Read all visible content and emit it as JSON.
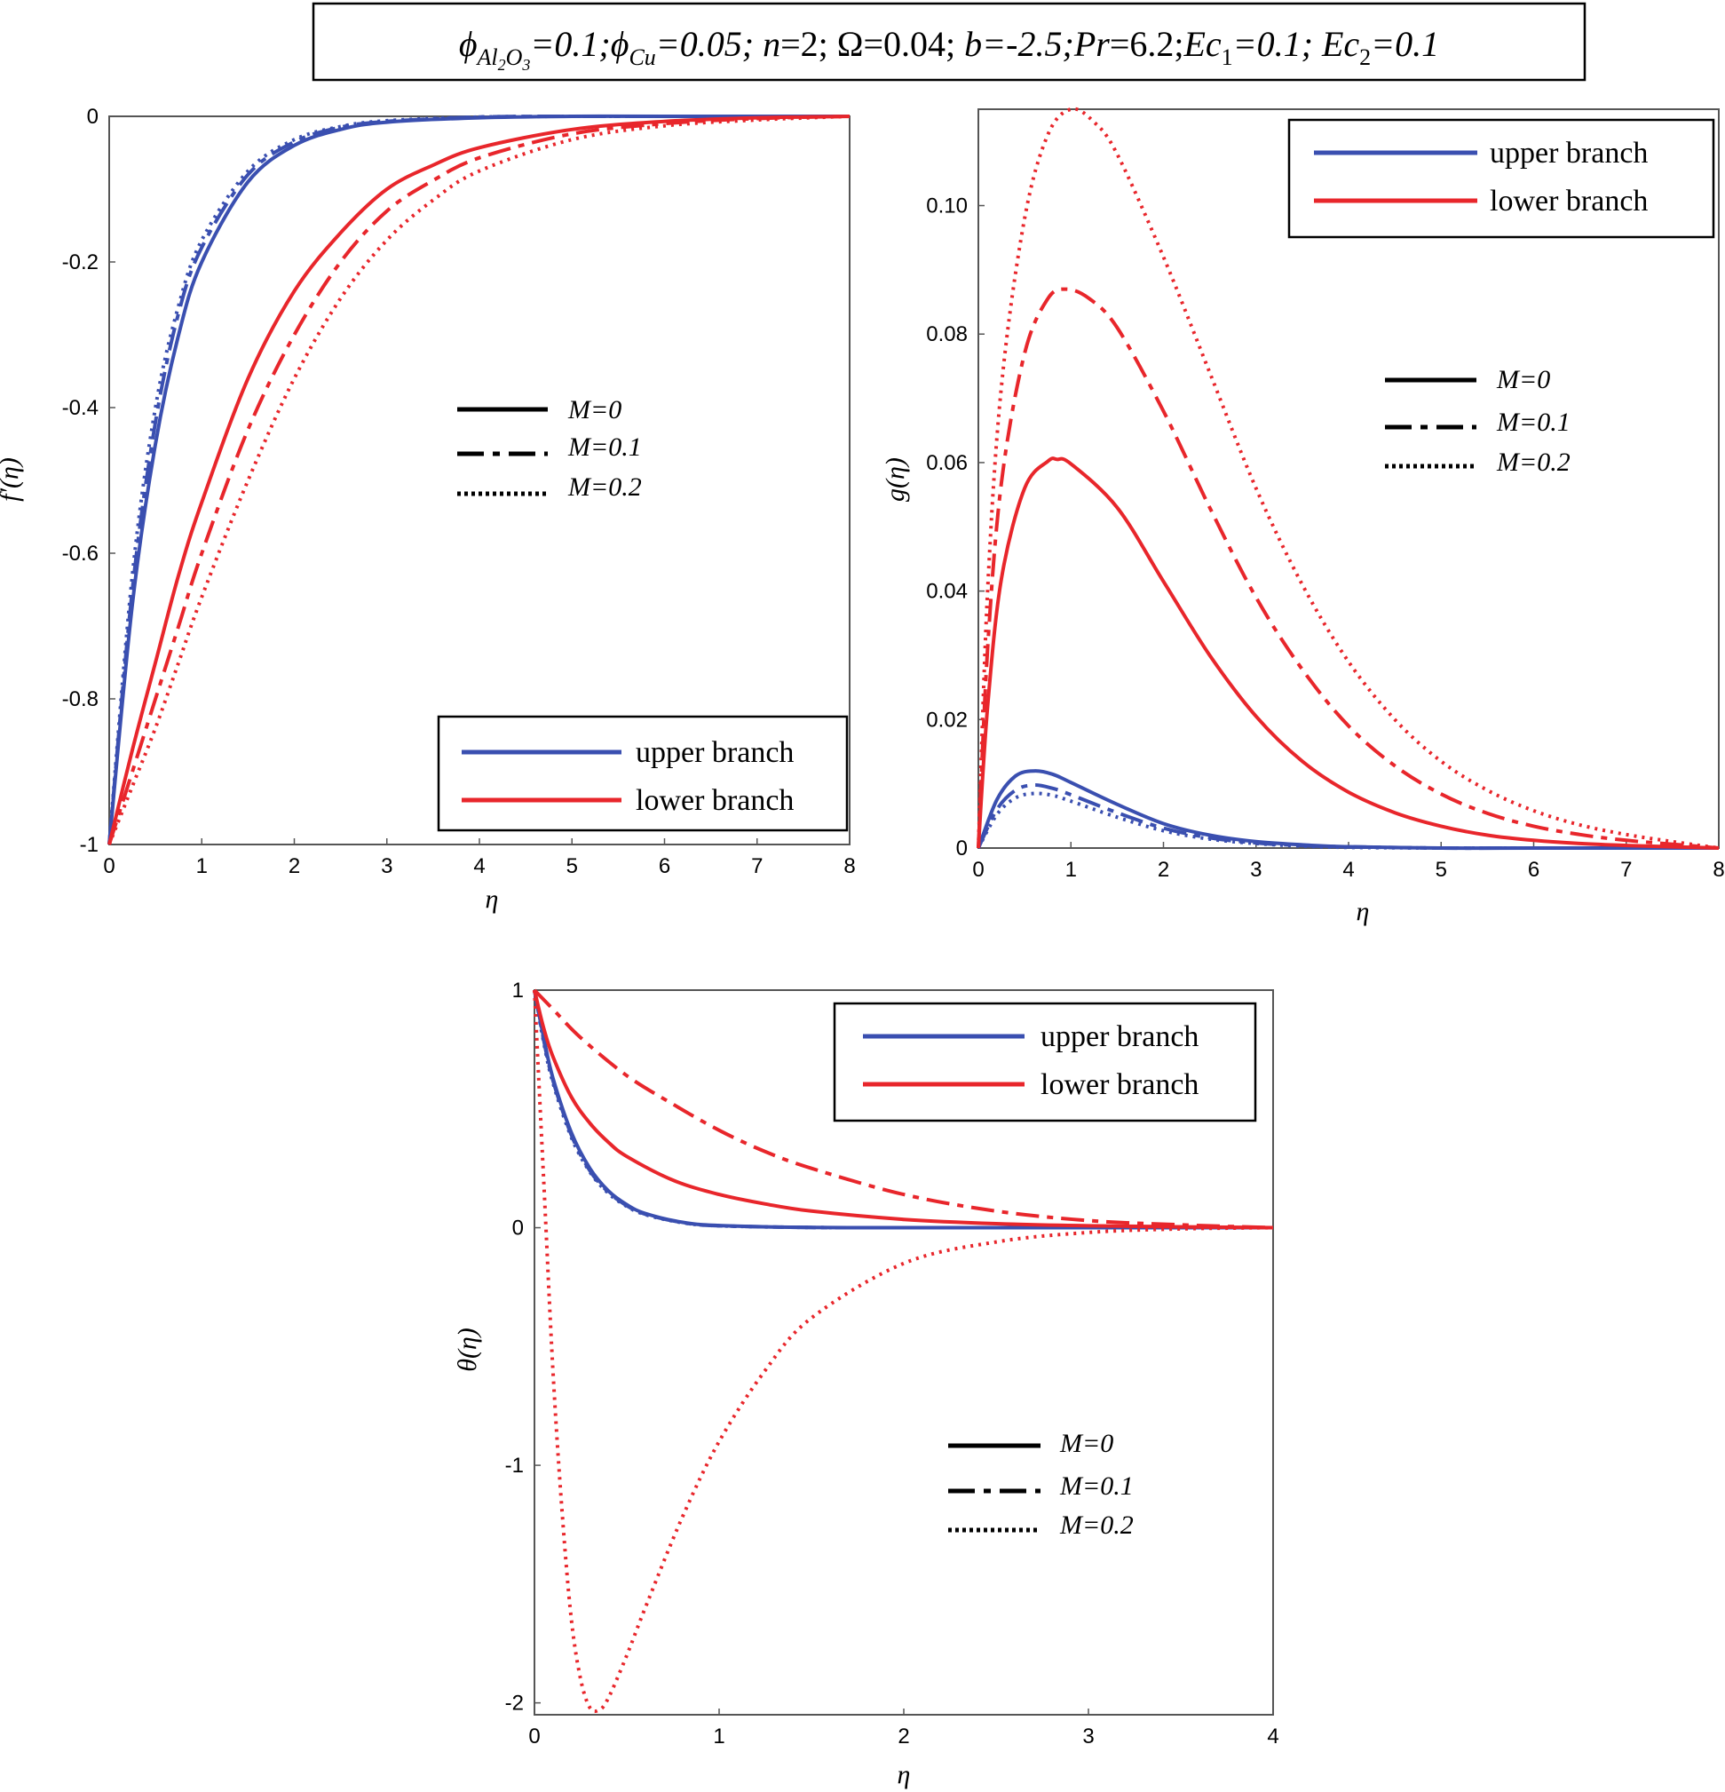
{
  "figure_title": "ϕAl₂O₃=0.1; ϕCu=0.05; n=2; Ω=0.04; b=-2.5; Pr=6.2; Ec₁=0.1; Ec₂=0.1",
  "title_parts": [
    "ϕ",
    "Al",
    "2",
    "O",
    "3",
    "=0.1;",
    "ϕ",
    "Cu",
    "=0.05;",
    "n",
    "=2;",
    "Ω=0.04;",
    "b",
    "=-2.5;",
    "Pr",
    "=6.2;",
    "Ec",
    "1",
    "=0.1;",
    "Ec",
    "2",
    "=0.1"
  ],
  "colors": {
    "upper": "#3a4fb0",
    "lower": "#e8262b",
    "legend_key": "#000000"
  },
  "legend_branches": [
    {
      "label": "upper branch",
      "color": "#3a4fb0"
    },
    {
      "label": "lower branch",
      "color": "#e8262b"
    }
  ],
  "legend_M": [
    {
      "label": "M=0",
      "dash": "solid"
    },
    {
      "label": "M=0.1",
      "dash": "dashdot"
    },
    {
      "label": "M=0.2",
      "dash": "dotted"
    }
  ],
  "chart_data": [
    {
      "id": "fprime",
      "type": "line",
      "ylabel": "f′(η)",
      "xlabel": "η",
      "xlim": [
        0,
        8
      ],
      "ylim": [
        -1,
        0
      ],
      "xticks": [
        0,
        1,
        2,
        3,
        4,
        5,
        6,
        7,
        8
      ],
      "yticks": [
        -1,
        -0.8,
        -0.6,
        -0.4,
        -0.2,
        0
      ],
      "ytick_labels": [
        "-1",
        "-0.8",
        "-0.6",
        "-0.4",
        "-0.2",
        "0"
      ],
      "series": [
        {
          "name": "upper branch, M=0",
          "branch": "upper",
          "M": 0,
          "x": [
            0,
            0.25,
            0.5,
            0.75,
            1,
            1.5,
            2,
            2.5,
            3,
            4,
            5,
            6,
            8
          ],
          "y": [
            -1,
            -0.67,
            -0.45,
            -0.3,
            -0.2,
            -0.09,
            -0.04,
            -0.018,
            -0.008,
            -0.002,
            0,
            0,
            0
          ]
        },
        {
          "name": "upper branch, M=0.1",
          "branch": "upper",
          "M": 0.1,
          "x": [
            0,
            0.25,
            0.5,
            0.75,
            1,
            1.5,
            2,
            2.5,
            3,
            4,
            5,
            6,
            8
          ],
          "y": [
            -1,
            -0.65,
            -0.42,
            -0.27,
            -0.18,
            -0.08,
            -0.035,
            -0.015,
            -0.007,
            -0.001,
            0,
            0,
            0
          ]
        },
        {
          "name": "upper branch, M=0.2",
          "branch": "upper",
          "M": 0.2,
          "x": [
            0,
            0.25,
            0.5,
            0.75,
            1,
            1.5,
            2,
            2.5,
            3,
            4,
            5,
            6,
            8
          ],
          "y": [
            -1,
            -0.63,
            -0.4,
            -0.26,
            -0.17,
            -0.075,
            -0.032,
            -0.014,
            -0.006,
            -0.001,
            0,
            0,
            0
          ]
        },
        {
          "name": "lower branch, M=0",
          "branch": "lower",
          "M": 0,
          "x": [
            0,
            0.25,
            0.5,
            0.75,
            1,
            1.5,
            2,
            2.5,
            3,
            3.5,
            4,
            5,
            6,
            7,
            8
          ],
          "y": [
            -1,
            -0.87,
            -0.75,
            -0.63,
            -0.53,
            -0.36,
            -0.24,
            -0.16,
            -0.1,
            -0.067,
            -0.043,
            -0.018,
            -0.007,
            -0.002,
            0
          ]
        },
        {
          "name": "lower branch, M=0.1",
          "branch": "lower",
          "M": 0.1,
          "x": [
            0,
            0.25,
            0.5,
            0.75,
            1,
            1.5,
            2,
            2.5,
            3,
            3.5,
            4,
            5,
            6,
            7,
            8
          ],
          "y": [
            -1,
            -0.9,
            -0.8,
            -0.7,
            -0.6,
            -0.43,
            -0.3,
            -0.2,
            -0.13,
            -0.088,
            -0.057,
            -0.024,
            -0.01,
            -0.003,
            0
          ]
        },
        {
          "name": "lower branch, M=0.2",
          "branch": "lower",
          "M": 0.2,
          "x": [
            0,
            0.25,
            0.5,
            0.75,
            1,
            1.5,
            2,
            2.5,
            3,
            3.5,
            4,
            5,
            6,
            7,
            8
          ],
          "y": [
            -1,
            -0.92,
            -0.84,
            -0.75,
            -0.66,
            -0.5,
            -0.36,
            -0.25,
            -0.17,
            -0.115,
            -0.075,
            -0.032,
            -0.013,
            -0.005,
            0
          ]
        }
      ]
    },
    {
      "id": "g",
      "type": "line",
      "ylabel": "g(η)",
      "xlabel": "η",
      "xlim": [
        0,
        8
      ],
      "ylim": [
        0,
        0.115
      ],
      "xticks": [
        0,
        1,
        2,
        3,
        4,
        5,
        6,
        7,
        8
      ],
      "yticks": [
        0,
        0.02,
        0.04,
        0.06,
        0.08,
        0.1
      ],
      "ytick_labels": [
        "0",
        "0.02",
        "0.04",
        "0.06",
        "0.08",
        "0.10"
      ],
      "series": [
        {
          "name": "upper branch, M=0",
          "branch": "upper",
          "M": 0,
          "x": [
            0,
            0.2,
            0.4,
            0.6,
            0.8,
            1,
            1.5,
            2,
            2.5,
            3,
            3.5,
            4,
            5,
            6,
            8
          ],
          "y": [
            0,
            0.0075,
            0.0112,
            0.012,
            0.0115,
            0.0102,
            0.0068,
            0.0038,
            0.002,
            0.001,
            0.0005,
            0.0002,
            0,
            0,
            0
          ]
        },
        {
          "name": "upper branch, M=0.1",
          "branch": "upper",
          "M": 0.1,
          "x": [
            0,
            0.2,
            0.4,
            0.6,
            0.8,
            1,
            1.5,
            2,
            2.5,
            3,
            3.5,
            4,
            5,
            6,
            8
          ],
          "y": [
            0,
            0.006,
            0.009,
            0.0098,
            0.0093,
            0.0083,
            0.0055,
            0.0031,
            0.0016,
            0.0008,
            0.0004,
            0.0002,
            0,
            0,
            0
          ]
        },
        {
          "name": "upper branch, M=0.2",
          "branch": "upper",
          "M": 0.2,
          "x": [
            0,
            0.2,
            0.4,
            0.6,
            0.8,
            1,
            1.5,
            2,
            2.5,
            3,
            3.5,
            4,
            5,
            6,
            8
          ],
          "y": [
            0,
            0.0052,
            0.0078,
            0.0085,
            0.0082,
            0.0073,
            0.0048,
            0.0027,
            0.0014,
            0.0007,
            0.0003,
            0.0001,
            0,
            0,
            0
          ]
        },
        {
          "name": "lower branch, M=0",
          "branch": "lower",
          "M": 0,
          "x": [
            0,
            0.1,
            0.25,
            0.5,
            0.75,
            0.85,
            1,
            1.5,
            2,
            2.5,
            3,
            3.5,
            4,
            4.5,
            5,
            5.5,
            6,
            6.5,
            7,
            7.5,
            8
          ],
          "y": [
            0,
            0.022,
            0.042,
            0.056,
            0.0602,
            0.0605,
            0.0598,
            0.053,
            0.0415,
            0.03,
            0.0205,
            0.0135,
            0.0087,
            0.0055,
            0.0034,
            0.002,
            0.0012,
            0.0007,
            0.0004,
            0.0002,
            0
          ]
        },
        {
          "name": "lower branch, M=0.1",
          "branch": "lower",
          "M": 0.1,
          "x": [
            0,
            0.1,
            0.25,
            0.5,
            0.75,
            0.95,
            1.2,
            1.5,
            2,
            2.5,
            3,
            3.5,
            4,
            4.5,
            5,
            5.5,
            6,
            6.5,
            7,
            7.5,
            8
          ],
          "y": [
            0,
            0.031,
            0.057,
            0.077,
            0.0855,
            0.087,
            0.0855,
            0.081,
            0.068,
            0.053,
            0.039,
            0.0278,
            0.019,
            0.0128,
            0.0084,
            0.0054,
            0.0034,
            0.0021,
            0.0012,
            0.0006,
            0
          ]
        },
        {
          "name": "lower branch, M=0.2",
          "branch": "lower",
          "M": 0.2,
          "x": [
            0,
            0.1,
            0.25,
            0.5,
            0.75,
            1,
            1.25,
            1.5,
            2,
            2.5,
            3,
            3.5,
            4,
            4.5,
            5,
            5.5,
            6,
            6.5,
            7,
            7.5,
            8
          ],
          "y": [
            0,
            0.04,
            0.072,
            0.098,
            0.111,
            0.115,
            0.113,
            0.108,
            0.092,
            0.074,
            0.056,
            0.041,
            0.029,
            0.02,
            0.0135,
            0.009,
            0.0058,
            0.0036,
            0.0021,
            0.001,
            0
          ]
        }
      ]
    },
    {
      "id": "theta",
      "type": "line",
      "ylabel": "θ(η)",
      "xlabel": "η",
      "xlim": [
        0,
        4
      ],
      "ylim": [
        -2.05,
        1
      ],
      "xticks": [
        0,
        1,
        2,
        3,
        4
      ],
      "yticks": [
        -2,
        -1,
        0,
        1
      ],
      "ytick_labels": [
        "-2",
        "-1",
        "0",
        "1"
      ],
      "series": [
        {
          "name": "upper branch, M=0",
          "branch": "upper",
          "M": 0,
          "x": [
            0,
            0.05,
            0.1,
            0.2,
            0.3,
            0.4,
            0.5,
            0.6,
            0.8,
            1,
            1.5,
            2,
            4
          ],
          "y": [
            1,
            0.8,
            0.63,
            0.4,
            0.25,
            0.155,
            0.097,
            0.06,
            0.023,
            0.009,
            0.001,
            0,
            0
          ]
        },
        {
          "name": "upper branch, M=0.1",
          "branch": "upper",
          "M": 0.1,
          "x": [
            0,
            0.05,
            0.1,
            0.2,
            0.3,
            0.4,
            0.5,
            0.6,
            0.8,
            1,
            1.5,
            2,
            4
          ],
          "y": [
            1,
            0.79,
            0.62,
            0.39,
            0.24,
            0.15,
            0.093,
            0.057,
            0.022,
            0.008,
            0.001,
            0,
            0
          ]
        },
        {
          "name": "upper branch, M=0.2",
          "branch": "upper",
          "M": 0.2,
          "x": [
            0,
            0.05,
            0.1,
            0.2,
            0.3,
            0.4,
            0.5,
            0.6,
            0.8,
            1,
            1.5,
            2,
            4
          ],
          "y": [
            1,
            0.78,
            0.61,
            0.38,
            0.235,
            0.145,
            0.09,
            0.055,
            0.021,
            0.008,
            0.001,
            0,
            0
          ]
        },
        {
          "name": "lower branch, M=0",
          "branch": "lower",
          "M": 0,
          "x": [
            0,
            0.05,
            0.1,
            0.2,
            0.3,
            0.4,
            0.5,
            0.75,
            1,
            1.25,
            1.5,
            2,
            2.5,
            3,
            4
          ],
          "y": [
            1,
            0.84,
            0.72,
            0.55,
            0.44,
            0.36,
            0.3,
            0.2,
            0.14,
            0.1,
            0.07,
            0.035,
            0.017,
            0.008,
            0
          ]
        },
        {
          "name": "lower branch, M=0.1",
          "branch": "lower",
          "M": 0.1,
          "x": [
            0,
            0.1,
            0.25,
            0.5,
            0.75,
            1,
            1.25,
            1.5,
            2,
            2.5,
            3,
            3.5,
            4
          ],
          "y": [
            1,
            0.92,
            0.8,
            0.64,
            0.52,
            0.41,
            0.32,
            0.25,
            0.14,
            0.07,
            0.03,
            0.012,
            0
          ]
        },
        {
          "name": "lower branch, M=0.2",
          "branch": "lower",
          "M": 0.2,
          "x": [
            0,
            0.05,
            0.1,
            0.15,
            0.2,
            0.25,
            0.3,
            0.35,
            0.4,
            0.5,
            0.6,
            0.8,
            1,
            1.25,
            1.5,
            2,
            2.5,
            3,
            3.5,
            4
          ],
          "y": [
            1,
            0.2,
            -0.6,
            -1.2,
            -1.65,
            -1.9,
            -2.02,
            -2.03,
            -1.98,
            -1.8,
            -1.6,
            -1.22,
            -0.9,
            -0.6,
            -0.38,
            -0.15,
            -0.06,
            -0.02,
            -0.005,
            0
          ]
        }
      ]
    }
  ]
}
